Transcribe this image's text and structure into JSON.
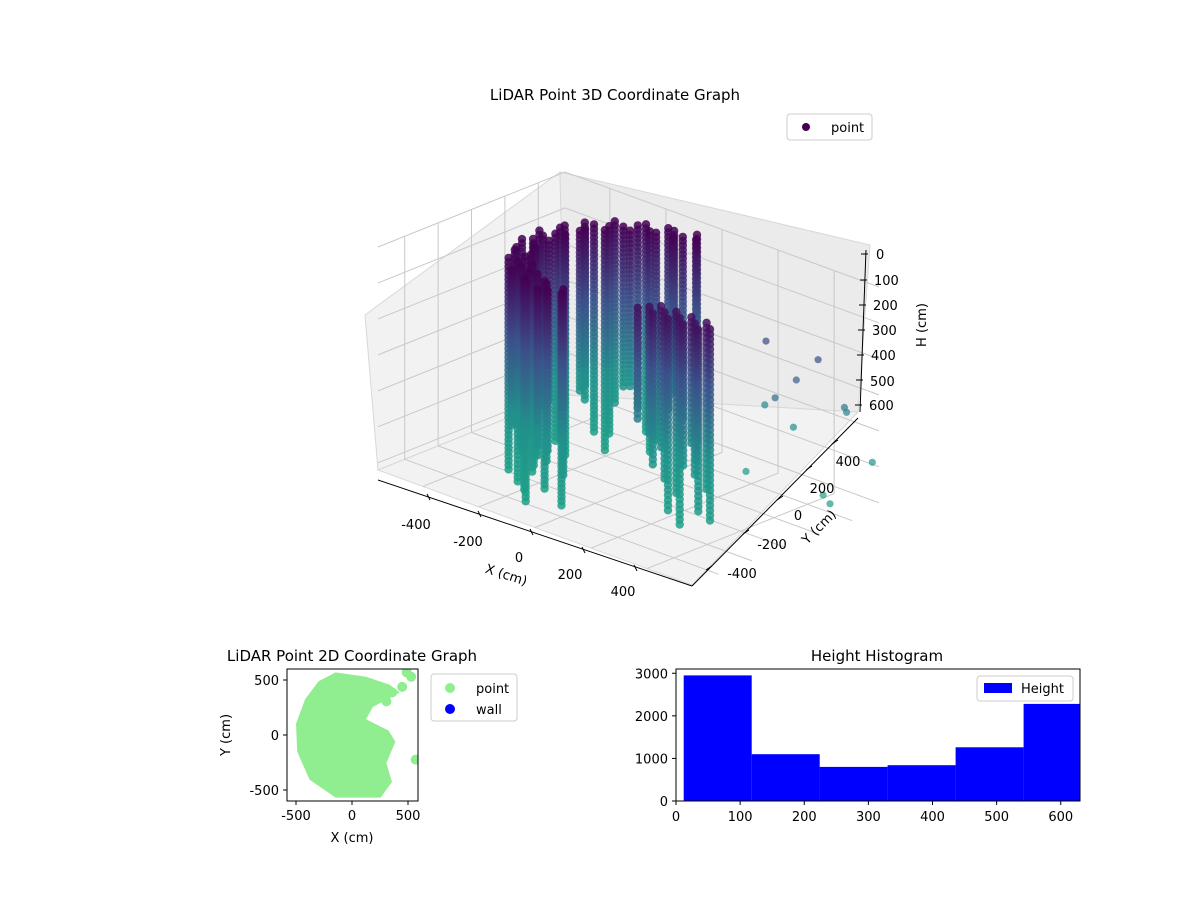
{
  "chart_data": [
    {
      "type": "scatter",
      "projection": "3d",
      "title": "LiDAR Point 3D Coordinate Graph",
      "xlabel": "X (cm)",
      "ylabel": "Y (cm)",
      "zlabel": "H (cm)",
      "xticks": [
        -400,
        -200,
        0,
        200,
        400
      ],
      "yticks": [
        -400,
        -200,
        0,
        200,
        400
      ],
      "zticks": [
        0,
        100,
        200,
        300,
        400,
        500,
        600
      ],
      "xlim": [
        -560,
        560
      ],
      "ylim": [
        -560,
        560
      ],
      "zlim": [
        0,
        620
      ],
      "z_axis_inverted": true,
      "colormap": [
        "#440154",
        "#3b528b",
        "#21918c",
        "#1fa187"
      ],
      "legend": {
        "position": "upper-right",
        "entries": [
          {
            "label": "point",
            "color": "#440154"
          }
        ]
      },
      "series": [
        {
          "name": "point",
          "shape": "half-ring of stacked vertical columns (wall) plus scattered outlier points",
          "wall": {
            "radius": 440,
            "angle_start_deg": 90,
            "angle_end_deg": 270,
            "h_min": 0,
            "h_max": 620
          },
          "outliers_sample": [
            {
              "x": 380,
              "y": 240,
              "h": 300
            },
            {
              "x": 420,
              "y": 300,
              "h": 250
            },
            {
              "x": 450,
              "y": 380,
              "h": 200
            },
            {
              "x": 300,
              "y": 320,
              "h": 180
            },
            {
              "x": 520,
              "y": 420,
              "h": 320
            },
            {
              "x": 480,
              "y": 500,
              "h": 360
            },
            {
              "x": 350,
              "y": 400,
              "h": 420
            },
            {
              "x": 560,
              "y": 520,
              "h": 480
            },
            {
              "x": 420,
              "y": 460,
              "h": 600
            },
            {
              "x": 300,
              "y": 200,
              "h": 520
            },
            {
              "x": 540,
              "y": 300,
              "h": 560
            },
            {
              "x": 260,
              "y": 380,
              "h": 380
            }
          ]
        }
      ]
    },
    {
      "type": "scatter",
      "title": "LiDAR Point 2D Coordinate Graph",
      "xlabel": "X (cm)",
      "ylabel": "Y (cm)",
      "xticks": [
        -500,
        0,
        500
      ],
      "yticks": [
        -500,
        0,
        500
      ],
      "xlim": [
        -580,
        580
      ],
      "ylim": [
        -590,
        590
      ],
      "legend": {
        "position": "outside-right",
        "entries": [
          {
            "label": "point",
            "color": "#90ee90"
          },
          {
            "label": "wall",
            "color": "#0000ff"
          }
        ]
      },
      "series": [
        {
          "name": "point",
          "color": "#90ee90",
          "shape": "filled half-disc region on the left with jagged right edge",
          "outline": [
            {
              "x": -150,
              "y": 560
            },
            {
              "x": 120,
              "y": 520
            },
            {
              "x": 330,
              "y": 450
            },
            {
              "x": 420,
              "y": 380
            },
            {
              "x": 180,
              "y": 250
            },
            {
              "x": 120,
              "y": 140
            },
            {
              "x": 320,
              "y": 40
            },
            {
              "x": 380,
              "y": -60
            },
            {
              "x": 300,
              "y": -250
            },
            {
              "x": 350,
              "y": -420
            },
            {
              "x": 250,
              "y": -560
            },
            {
              "x": -150,
              "y": -560
            },
            {
              "x": -380,
              "y": -400
            },
            {
              "x": -490,
              "y": -150
            },
            {
              "x": -500,
              "y": 100
            },
            {
              "x": -420,
              "y": 320
            },
            {
              "x": -300,
              "y": 480
            }
          ],
          "extra_points": [
            {
              "x": 480,
              "y": 560
            },
            {
              "x": 520,
              "y": 520
            },
            {
              "x": 440,
              "y": 430
            },
            {
              "x": 560,
              "y": -220
            },
            {
              "x": 350,
              "y": 380
            },
            {
              "x": 300,
              "y": 300
            }
          ]
        },
        {
          "name": "wall",
          "color": "#0000ff",
          "values": []
        }
      ]
    },
    {
      "type": "bar",
      "subtype": "histogram",
      "title": "Height Histogram",
      "xlabel": "",
      "ylabel": "",
      "xticks": [
        0,
        100,
        200,
        300,
        400,
        500,
        600
      ],
      "yticks": [
        0,
        1000,
        2000,
        3000
      ],
      "xlim": [
        0,
        630
      ],
      "ylim": [
        0,
        3100
      ],
      "color": "#0000ff",
      "legend": {
        "position": "upper-right",
        "entries": [
          {
            "label": "Height",
            "color": "#0000ff"
          }
        ]
      },
      "bin_edges": [
        12,
        118,
        224,
        330,
        436,
        542,
        648
      ],
      "series": [
        {
          "name": "Height",
          "values": [
            2950,
            1100,
            800,
            840,
            1260,
            2280
          ]
        }
      ]
    }
  ]
}
